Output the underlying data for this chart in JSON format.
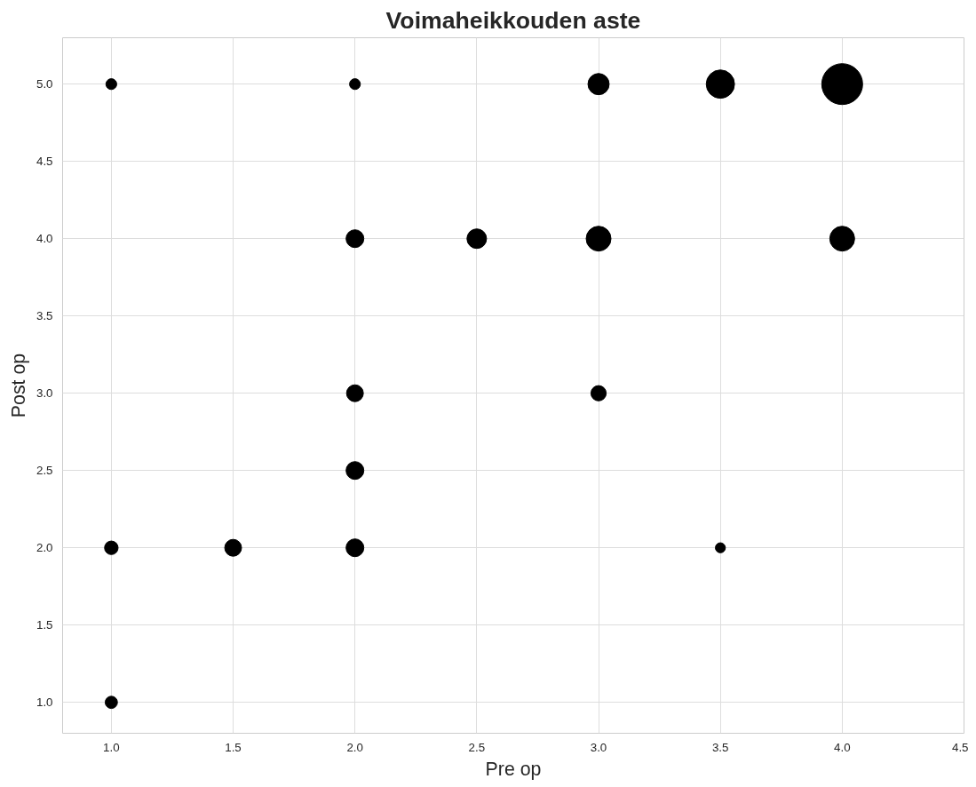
{
  "chart_data": {
    "type": "bubble",
    "title": "Voimaheikkouden aste",
    "xlabel": "Pre op",
    "ylabel": "Post op",
    "x": [
      1.0,
      2.0,
      3.0,
      3.5,
      4.0,
      2.0,
      2.5,
      3.0,
      4.0,
      2.0,
      3.0,
      2.0,
      1.0,
      1.5,
      2.0,
      3.5,
      1.0
    ],
    "series": [
      {
        "color": "#000000",
        "values": [
          5.0,
          5.0,
          5.0,
          5.0,
          5.0,
          4.0,
          4.0,
          4.0,
          4.0,
          3.0,
          3.0,
          2.5,
          2.0,
          2.0,
          2.0,
          2.0,
          1.0
        ],
        "sizes": [
          0.07,
          0.07,
          0.27,
          0.48,
          1,
          0.19,
          0.23,
          0.37,
          0.37,
          0.17,
          0.14,
          0.19,
          0.11,
          0.17,
          0.19,
          0.06,
          0.09
        ]
      }
    ],
    "xlim": [
      0.8,
      4.5
    ],
    "ylim": [
      0.8,
      5.3
    ],
    "xticks": [
      {
        "value": 1,
        "label": "1.0"
      },
      {
        "value": 1.5,
        "label": "1.5"
      },
      {
        "value": 2,
        "label": "2.0"
      },
      {
        "value": 2.5,
        "label": "2.5"
      },
      {
        "value": 3,
        "label": "3.0"
      },
      {
        "value": 3.5,
        "label": "3.5"
      },
      {
        "value": 4,
        "label": "4.0"
      },
      {
        "value": 4.5,
        "label": "4.5"
      }
    ],
    "yticks": [
      {
        "value": 1,
        "label": "1.0"
      },
      {
        "value": 1.5,
        "label": "1.5"
      },
      {
        "value": 2,
        "label": "2.0"
      },
      {
        "value": 2.5,
        "label": "2.5"
      },
      {
        "value": 3,
        "label": "3.0"
      },
      {
        "value": 3.5,
        "label": "3.5"
      },
      {
        "value": 4,
        "label": "4.0"
      },
      {
        "value": 4.5,
        "label": "4.5"
      },
      {
        "value": 5,
        "label": "5.0"
      }
    ],
    "grid": true,
    "marker": "circle"
  }
}
